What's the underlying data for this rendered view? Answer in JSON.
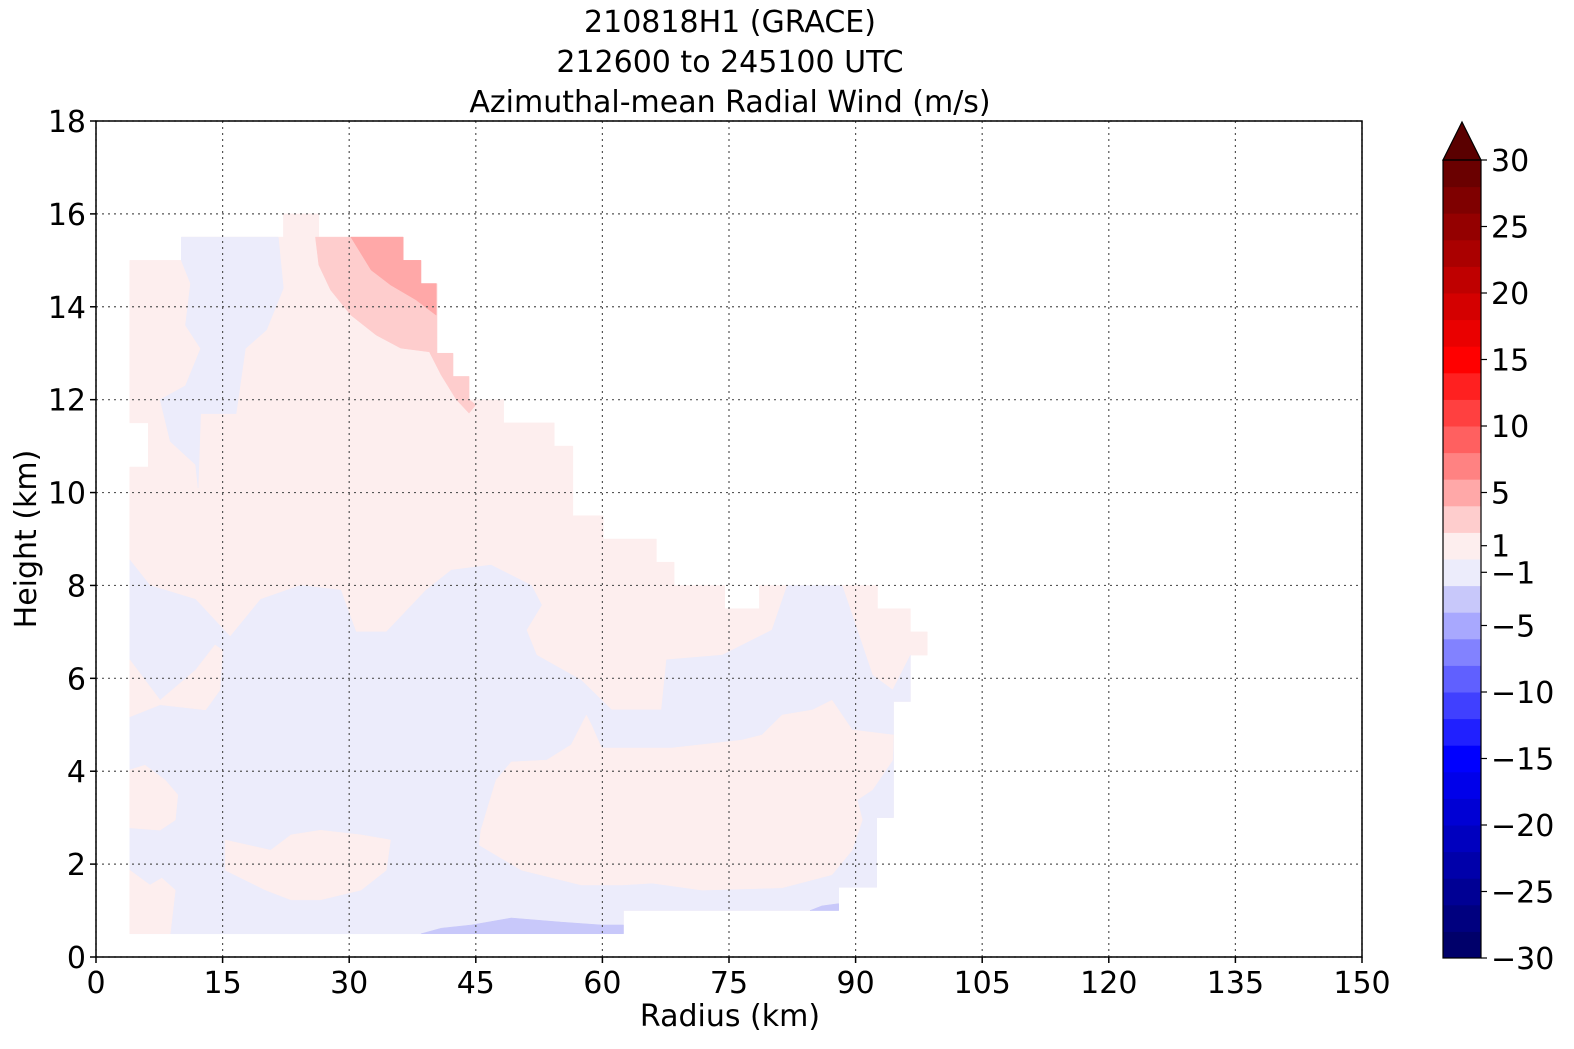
{
  "chart_data": {
    "type": "contourf",
    "title": [
      "210818H1 (GRACE)",
      "212600 to 245100 UTC",
      "Azimuthal-mean Radial Wind (m/s)"
    ],
    "xlabel": "Radius (km)",
    "ylabel": "Height (km)",
    "xlim": [
      0,
      150
    ],
    "xticks": [
      0,
      15,
      30,
      45,
      60,
      75,
      90,
      105,
      120,
      135,
      150
    ],
    "ylim": [
      0,
      18
    ],
    "yticks": [
      0,
      2,
      4,
      6,
      8,
      10,
      12,
      14,
      16,
      18
    ],
    "grid": true,
    "regions": [
      {
        "value": 0.5,
        "points": [
          [
            4,
            0.5
          ],
          [
            62.5,
            0.5
          ],
          [
            62.5,
            1
          ],
          [
            88,
            1
          ],
          [
            88,
            1.5
          ],
          [
            92.5,
            1.5
          ],
          [
            92.5,
            3
          ],
          [
            94.5,
            3
          ],
          [
            94.5,
            5.5
          ],
          [
            96.5,
            5.5
          ],
          [
            96.5,
            6.5
          ],
          [
            98.5,
            6.5
          ],
          [
            98.5,
            7
          ],
          [
            96.5,
            7
          ],
          [
            96.5,
            7.5
          ],
          [
            92.6,
            7.5
          ],
          [
            92.6,
            8
          ],
          [
            78.6,
            8
          ],
          [
            78.6,
            7.5
          ],
          [
            74.5,
            7.5
          ],
          [
            74.5,
            8
          ],
          [
            68.5,
            8
          ],
          [
            68.5,
            8.5
          ],
          [
            66.4,
            8.5
          ],
          [
            66.4,
            9
          ],
          [
            60.1,
            9
          ],
          [
            60.1,
            9.5
          ],
          [
            56.5,
            9.5
          ],
          [
            56.5,
            11
          ],
          [
            54.3,
            11
          ],
          [
            54.3,
            11.5
          ],
          [
            48.3,
            11.5
          ],
          [
            48.3,
            12
          ],
          [
            44.2,
            12
          ],
          [
            44.2,
            12.5
          ],
          [
            42.3,
            12.5
          ],
          [
            42.3,
            13
          ],
          [
            40.4,
            13
          ],
          [
            40.4,
            14.5
          ],
          [
            38.5,
            14.5
          ],
          [
            38.5,
            15
          ],
          [
            36.4,
            15
          ],
          [
            36.4,
            15.5
          ],
          [
            26.4,
            15.5
          ],
          [
            26.4,
            16
          ],
          [
            22.2,
            16
          ],
          [
            22.2,
            15.5
          ],
          [
            10.1,
            15.5
          ],
          [
            10.1,
            15
          ],
          [
            4,
            15
          ],
          [
            4,
            11.5
          ],
          [
            6.2,
            11.5
          ],
          [
            6.2,
            10.55
          ],
          [
            4,
            10.55
          ]
        ]
      },
      {
        "value": -1,
        "points": [
          [
            4,
            8.55
          ],
          [
            6.4,
            8.0
          ],
          [
            11.8,
            7.7
          ],
          [
            15.9,
            6.9
          ],
          [
            19.5,
            7.7
          ],
          [
            24.2,
            8.0
          ],
          [
            29.0,
            7.9
          ],
          [
            30.8,
            7.0
          ],
          [
            34.4,
            7.0
          ],
          [
            39.1,
            7.9
          ],
          [
            42.1,
            8.33
          ],
          [
            46.8,
            8.44
          ],
          [
            51.6,
            8.0
          ],
          [
            52.8,
            7.58
          ],
          [
            51.0,
            7.04
          ],
          [
            52.2,
            6.5
          ],
          [
            57.5,
            5.96
          ],
          [
            61.1,
            5.32
          ],
          [
            67.0,
            5.32
          ],
          [
            67.6,
            6.4
          ],
          [
            74.2,
            6.5
          ],
          [
            80.1,
            7.04
          ],
          [
            81.9,
            8.0
          ],
          [
            88.4,
            8.0
          ],
          [
            90.2,
            7.04
          ],
          [
            92.0,
            6.07
          ],
          [
            94.4,
            5.75
          ],
          [
            96.5,
            6.5
          ],
          [
            96.5,
            5.5
          ],
          [
            94.5,
            5.5
          ],
          [
            94.5,
            3
          ],
          [
            92.5,
            3
          ],
          [
            92.5,
            1.5
          ],
          [
            88,
            1.5
          ],
          [
            88,
            1
          ],
          [
            62.5,
            1
          ],
          [
            62.5,
            0.5
          ],
          [
            4,
            0.5
          ]
        ]
      },
      {
        "value": 0.5,
        "points": [
          [
            4,
            6.4
          ],
          [
            7.6,
            5.53
          ],
          [
            11.8,
            6.18
          ],
          [
            14.1,
            6.72
          ],
          [
            15.0,
            6.61
          ],
          [
            14.7,
            5.75
          ],
          [
            13.0,
            5.32
          ],
          [
            7.6,
            5.43
          ],
          [
            4,
            5.17
          ]
        ]
      },
      {
        "value": 0.5,
        "points": [
          [
            4,
            4.03
          ],
          [
            5.8,
            4.13
          ],
          [
            8.2,
            3.81
          ],
          [
            9.7,
            3.49
          ],
          [
            9.4,
            2.95
          ],
          [
            7.6,
            2.73
          ],
          [
            4,
            2.78
          ]
        ]
      },
      {
        "value": 0.5,
        "points": [
          [
            15.3,
            2.52
          ],
          [
            20.7,
            2.3
          ],
          [
            23.1,
            2.63
          ],
          [
            26.6,
            2.73
          ],
          [
            31.4,
            2.63
          ],
          [
            34.9,
            2.52
          ],
          [
            34.4,
            1.87
          ],
          [
            31.4,
            1.44
          ],
          [
            26.6,
            1.23
          ],
          [
            23.1,
            1.23
          ],
          [
            20.1,
            1.44
          ],
          [
            15.3,
            1.87
          ]
        ]
      },
      {
        "value": 0.5,
        "points": [
          [
            4,
            1.87
          ],
          [
            6.4,
            1.55
          ],
          [
            7.8,
            1.7
          ],
          [
            9.4,
            1.44
          ],
          [
            8.8,
            0.5
          ],
          [
            4,
            0.5
          ]
        ]
      },
      {
        "value": 0.5,
        "points": [
          [
            45.4,
            2.41
          ],
          [
            45.6,
            2.73
          ],
          [
            47.4,
            3.81
          ],
          [
            49.2,
            4.2
          ],
          [
            53.4,
            4.24
          ],
          [
            56.3,
            4.57
          ],
          [
            58.1,
            5.21
          ],
          [
            58.7,
            5.0
          ],
          [
            59.9,
            4.5
          ],
          [
            68.2,
            4.5
          ],
          [
            76.5,
            4.67
          ],
          [
            78.9,
            4.78
          ],
          [
            81.3,
            5.21
          ],
          [
            84.9,
            5.32
          ],
          [
            87.2,
            5.53
          ],
          [
            89.6,
            4.89
          ],
          [
            94.5,
            4.78
          ],
          [
            94.4,
            4.24
          ],
          [
            92.0,
            3.6
          ],
          [
            90.2,
            3.38
          ],
          [
            90.8,
            2.95
          ],
          [
            89.6,
            2.3
          ],
          [
            87.2,
            1.77
          ],
          [
            81.3,
            1.49
          ],
          [
            71.8,
            1.44
          ],
          [
            65.9,
            1.59
          ],
          [
            62.3,
            1.55
          ],
          [
            57.5,
            1.55
          ],
          [
            50.4,
            1.87
          ]
        ]
      },
      {
        "value": -3,
        "points": [
          [
            38.5,
            0.5
          ],
          [
            40.9,
            0.62
          ],
          [
            44.5,
            0.69
          ],
          [
            49.2,
            0.84
          ],
          [
            55.2,
            0.75
          ],
          [
            59.9,
            0.69
          ],
          [
            62.5,
            0.69
          ],
          [
            62.5,
            0.5
          ]
        ]
      },
      {
        "value": -3,
        "points": [
          [
            84.6,
            1
          ],
          [
            86,
            1.1
          ],
          [
            88,
            1.15
          ],
          [
            88,
            1
          ]
        ]
      },
      {
        "value": -1,
        "points": [
          [
            10.1,
            15.5
          ],
          [
            21.6,
            15.5
          ],
          [
            22.2,
            14.4
          ],
          [
            20.2,
            13.5
          ],
          [
            17.7,
            13.1
          ],
          [
            16.6,
            11.7
          ],
          [
            12.4,
            11.7
          ],
          [
            12.1,
            10.1
          ],
          [
            11.8,
            10.6
          ],
          [
            8.8,
            11.1
          ],
          [
            7.6,
            12.0
          ],
          [
            10.6,
            12.3
          ],
          [
            12.4,
            13.1
          ],
          [
            10.6,
            13.6
          ],
          [
            11.2,
            14.5
          ],
          [
            10.1,
            15.0
          ]
        ]
      },
      {
        "value": 3,
        "points": [
          [
            26.0,
            15.5
          ],
          [
            26.4,
            14.9
          ],
          [
            27.8,
            14.36
          ],
          [
            30.2,
            13.82
          ],
          [
            33.2,
            13.39
          ],
          [
            36.1,
            13.11
          ],
          [
            39.5,
            13.03
          ],
          [
            40.9,
            12.53
          ],
          [
            42.7,
            12.0
          ],
          [
            44.2,
            11.71
          ],
          [
            45.0,
            11.89
          ],
          [
            44.2,
            12
          ],
          [
            44.2,
            12.5
          ],
          [
            42.3,
            12.5
          ],
          [
            42.3,
            13
          ],
          [
            40.4,
            13
          ],
          [
            40.4,
            14.5
          ],
          [
            38.5,
            14.5
          ],
          [
            38.5,
            15
          ],
          [
            36.4,
            15
          ],
          [
            36.4,
            15.5
          ]
        ]
      },
      {
        "value": 5,
        "points": [
          [
            30.2,
            15.5
          ],
          [
            36.4,
            15.5
          ],
          [
            36.4,
            15
          ],
          [
            38.5,
            15
          ],
          [
            38.5,
            14.5
          ],
          [
            40.3,
            14.5
          ],
          [
            40.3,
            13.82
          ],
          [
            37.9,
            14.15
          ],
          [
            34.9,
            14.47
          ],
          [
            32.6,
            14.79
          ]
        ]
      }
    ],
    "colorbar": {
      "levels": [
        -30,
        -28,
        -26,
        -24,
        -22,
        -20,
        -18,
        -16,
        -14,
        -12,
        -10,
        -8,
        -6,
        -4,
        -2,
        0,
        2,
        4,
        6,
        8,
        10,
        12,
        14,
        16,
        18,
        20,
        22,
        24,
        26,
        28,
        30
      ],
      "colors": [
        "#00006a",
        "#00007f",
        "#000094",
        "#0000aa",
        "#0000bf",
        "#0000d4",
        "#0000ea",
        "#0000ff",
        "#2020ff",
        "#4040ff",
        "#6060ff",
        "#8282ff",
        "#a8a8fe",
        "#c8c8fa",
        "#ececfb",
        "#fdeeee",
        "#fecdcd",
        "#ffa8a8",
        "#ff8282",
        "#ff6060",
        "#ff4040",
        "#ff2020",
        "#ff0000",
        "#ea0000",
        "#d40000",
        "#bf0000",
        "#aa0000",
        "#940000",
        "#7f0000",
        "#6a0000"
      ],
      "extend_color": "#5a0000",
      "ticks": [
        {
          "value": -30,
          "label": "−30"
        },
        {
          "value": -25,
          "label": "−25"
        },
        {
          "value": -20,
          "label": "−20"
        },
        {
          "value": -15,
          "label": "−15"
        },
        {
          "value": -10,
          "label": "−10"
        },
        {
          "value": -5,
          "label": "−5"
        },
        {
          "value": -1,
          "label": "−1"
        },
        1,
        5,
        10,
        15,
        20,
        25,
        30
      ]
    }
  }
}
